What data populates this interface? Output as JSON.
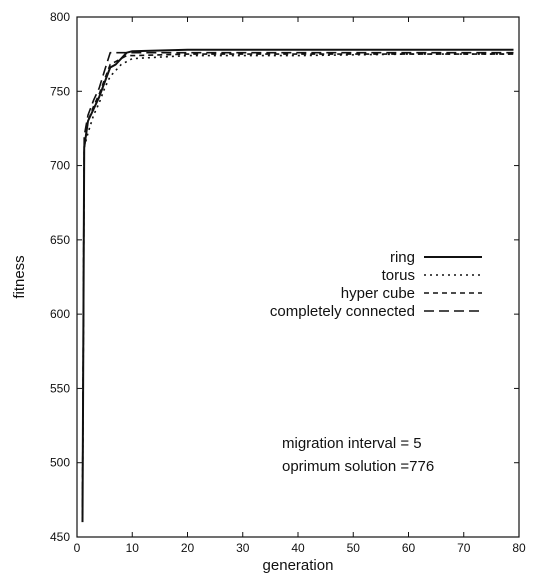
{
  "chart_data": {
    "type": "line",
    "title": "",
    "xlabel": "generation",
    "ylabel": "fitness",
    "xlim": [
      0,
      80
    ],
    "ylim": [
      450,
      800
    ],
    "xticks": [
      0,
      10,
      20,
      30,
      40,
      50,
      60,
      70,
      80
    ],
    "yticks": [
      450,
      500,
      550,
      600,
      650,
      700,
      750,
      800
    ],
    "grid": false,
    "legend_position": "center-right",
    "series": [
      {
        "name": "ring",
        "style": "solid",
        "x": [
          1,
          1.3,
          2,
          3,
          4,
          5,
          6,
          7,
          8,
          9,
          10,
          20,
          40,
          60,
          79
        ],
        "y": [
          460,
          712,
          730,
          738,
          746,
          756,
          766,
          768,
          772,
          776,
          777,
          778,
          778,
          778,
          778
        ]
      },
      {
        "name": "torus",
        "style": "dotted",
        "x": [
          1,
          1.3,
          2,
          3,
          4,
          5,
          6,
          7,
          8,
          9,
          10,
          20,
          40,
          60,
          79
        ],
        "y": [
          462,
          712,
          722,
          734,
          742,
          752,
          760,
          764,
          768,
          770,
          772,
          774,
          774,
          775,
          775
        ]
      },
      {
        "name": "hyper cube",
        "style": "short-dash",
        "x": [
          1,
          1.3,
          2,
          3,
          4,
          5,
          6,
          7,
          8,
          9,
          10,
          20,
          40,
          60,
          79
        ],
        "y": [
          465,
          712,
          730,
          740,
          748,
          758,
          768,
          770,
          772,
          774,
          774,
          775,
          775,
          775,
          775
        ]
      },
      {
        "name": "completely connected",
        "style": "long-dash",
        "x": [
          1,
          1.3,
          2,
          3,
          4,
          5,
          6,
          7,
          8,
          9,
          10,
          20,
          40,
          60,
          79
        ],
        "y": [
          470,
          720,
          734,
          744,
          752,
          764,
          776,
          776,
          776,
          776,
          776,
          776,
          776,
          776,
          776
        ]
      }
    ],
    "annotations": [
      "migration interval = 5",
      "oprimum solution =776"
    ]
  }
}
